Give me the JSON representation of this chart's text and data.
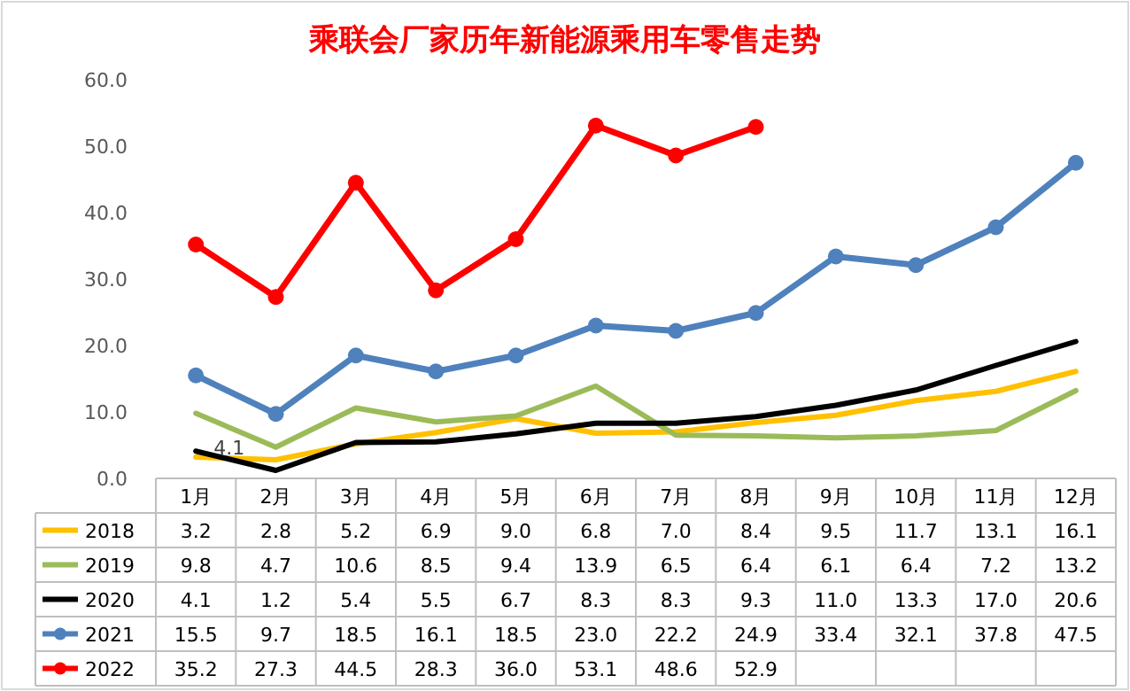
{
  "chart_data": {
    "type": "line",
    "title": "乘联会厂家历年新能源乘用车零售走势",
    "categories": [
      "1月",
      "2月",
      "3月",
      "4月",
      "5月",
      "6月",
      "7月",
      "8月",
      "9月",
      "10月",
      "11月",
      "12月"
    ],
    "ylim": [
      0,
      60
    ],
    "yticks": [
      {
        "value": 0,
        "label": "0.0"
      },
      {
        "value": 10,
        "label": "10.0"
      },
      {
        "value": 20,
        "label": "20.0"
      },
      {
        "value": 30,
        "label": "30.0"
      },
      {
        "value": 40,
        "label": "40.0"
      },
      {
        "value": 50,
        "label": "50.0"
      },
      {
        "value": 60,
        "label": "60.0"
      }
    ],
    "legend": "bottom",
    "series": [
      {
        "name": "2018",
        "color": "#ffc000",
        "marker": "none",
        "values": [
          3.2,
          2.8,
          5.2,
          6.9,
          9.0,
          6.8,
          7.0,
          8.4,
          9.5,
          11.7,
          13.1,
          16.1
        ],
        "value_labels": [
          "3.2",
          "2.8",
          "5.2",
          "6.9",
          "9.0",
          "6.8",
          "7.0",
          "8.4",
          "9.5",
          "11.7",
          "13.1",
          "16.1"
        ]
      },
      {
        "name": "2019",
        "color": "#9bbb59",
        "marker": "none",
        "values": [
          9.8,
          4.7,
          10.6,
          8.5,
          9.4,
          13.9,
          6.5,
          6.4,
          6.1,
          6.4,
          7.2,
          13.2
        ],
        "value_labels": [
          "9.8",
          "4.7",
          "10.6",
          "8.5",
          "9.4",
          "13.9",
          "6.5",
          "6.4",
          "6.1",
          "6.4",
          "7.2",
          "13.2"
        ]
      },
      {
        "name": "2020",
        "color": "#000000",
        "marker": "none",
        "values": [
          4.1,
          1.2,
          5.4,
          5.5,
          6.7,
          8.3,
          8.3,
          9.3,
          11.0,
          13.3,
          17.0,
          20.6
        ],
        "value_labels": [
          "4.1",
          "1.2",
          "5.4",
          "5.5",
          "6.7",
          "8.3",
          "8.3",
          "9.3",
          "11.0",
          "13.3",
          "17.0",
          "20.6"
        ]
      },
      {
        "name": "2021",
        "color": "#4f81bd",
        "marker": "circle",
        "values": [
          15.5,
          9.7,
          18.5,
          16.1,
          18.5,
          23.0,
          22.2,
          24.9,
          33.4,
          32.1,
          37.8,
          47.5
        ],
        "value_labels": [
          "15.5",
          "9.7",
          "18.5",
          "16.1",
          "18.5",
          "23.0",
          "22.2",
          "24.9",
          "33.4",
          "32.1",
          "37.8",
          "47.5"
        ]
      },
      {
        "name": "2022",
        "color": "#ff0000",
        "marker": "circle",
        "values": [
          35.2,
          27.3,
          44.5,
          28.3,
          36.0,
          53.1,
          48.6,
          52.9,
          null,
          null,
          null,
          null
        ],
        "value_labels": [
          "35.2",
          "27.3",
          "44.5",
          "28.3",
          "36.0",
          "53.1",
          "48.6",
          "52.9",
          null,
          null,
          null,
          null
        ]
      }
    ],
    "annotations": [
      {
        "text": "4.1",
        "x": "1月",
        "y": 4.1
      }
    ]
  }
}
